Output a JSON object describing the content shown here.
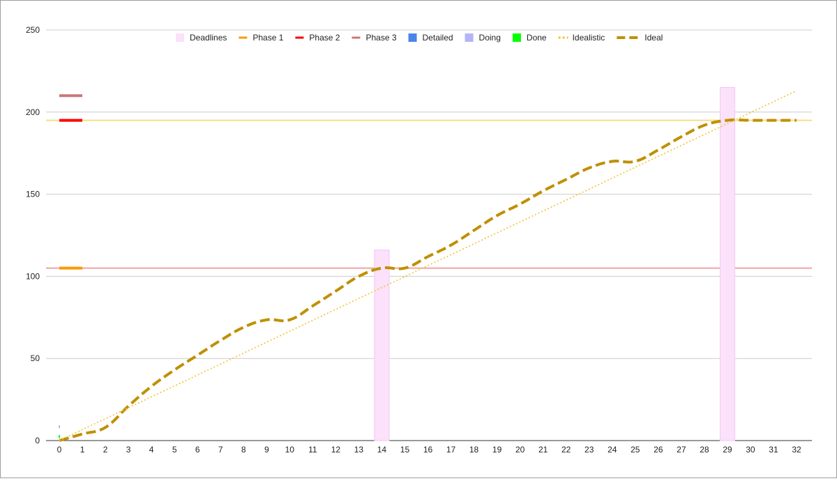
{
  "chart_data": {
    "type": "line",
    "title": "",
    "xlabel": "",
    "ylabel": "",
    "xlim": [
      0,
      32
    ],
    "ylim": [
      0,
      250
    ],
    "y_ticks": [
      0,
      50,
      100,
      150,
      200,
      250
    ],
    "x_ticks": [
      0,
      1,
      2,
      3,
      4,
      5,
      6,
      7,
      8,
      9,
      10,
      11,
      12,
      13,
      14,
      15,
      16,
      17,
      18,
      19,
      20,
      21,
      22,
      23,
      24,
      25,
      26,
      27,
      28,
      29,
      30,
      31,
      32
    ],
    "grid": true,
    "legend_position": "top",
    "legend": [
      {
        "name": "Deadlines",
        "color": "#fce1fb",
        "marker": "square"
      },
      {
        "name": "Phase 1",
        "color": "#ff9900",
        "marker": "line"
      },
      {
        "name": "Phase 2",
        "color": "#ff0000",
        "marker": "line"
      },
      {
        "name": "Phase 3",
        "color": "#cc7777",
        "marker": "line"
      },
      {
        "name": "Detailed",
        "color": "#4a86e8",
        "marker": "square"
      },
      {
        "name": "Doing",
        "color": "#b4b4f7",
        "marker": "square"
      },
      {
        "name": "Done",
        "color": "#00ff00",
        "marker": "square"
      },
      {
        "name": "Idealistic",
        "color": "#f1c232",
        "marker": "dotted"
      },
      {
        "name": "Ideal",
        "color": "#bf9000",
        "marker": "dashed"
      }
    ],
    "deadlines": [
      {
        "x": 14,
        "value": 116
      },
      {
        "x": 29,
        "value": 215
      }
    ],
    "phase_markers": [
      {
        "name": "Phase 1",
        "x": [
          0,
          1
        ],
        "value": 105
      },
      {
        "name": "Phase 2",
        "x": [
          0,
          1
        ],
        "value": 195
      },
      {
        "name": "Phase 3",
        "x": [
          0,
          1
        ],
        "value": 210
      }
    ],
    "reference_lines": [
      {
        "value": 195,
        "color": "#f6dd86"
      },
      {
        "value": 105,
        "color": "#eea3a3"
      }
    ],
    "series": [
      {
        "name": "Ideal",
        "style": "dashed",
        "x": [
          0,
          1,
          2,
          3,
          4,
          5,
          6,
          7,
          8,
          9,
          10,
          11,
          12,
          13,
          14,
          15,
          16,
          17,
          18,
          19,
          20,
          21,
          22,
          23,
          24,
          25,
          26,
          27,
          28,
          29,
          30,
          31,
          32
        ],
        "values": [
          0,
          4,
          8,
          21,
          33,
          43,
          52,
          61,
          69,
          73.5,
          73.5,
          82,
          91,
          100,
          105,
          105,
          112,
          119,
          128,
          137,
          144,
          152,
          159,
          166,
          170,
          170,
          177,
          185,
          192,
          195,
          195,
          195,
          195
        ]
      },
      {
        "name": "Idealistic",
        "style": "dotted",
        "x": [
          0,
          32
        ],
        "values": [
          0,
          213
        ]
      }
    ],
    "small_marks": [
      {
        "name": "Doing",
        "x": 0,
        "value": 8
      },
      {
        "name": "Done",
        "x": 0,
        "value": 2
      }
    ]
  }
}
